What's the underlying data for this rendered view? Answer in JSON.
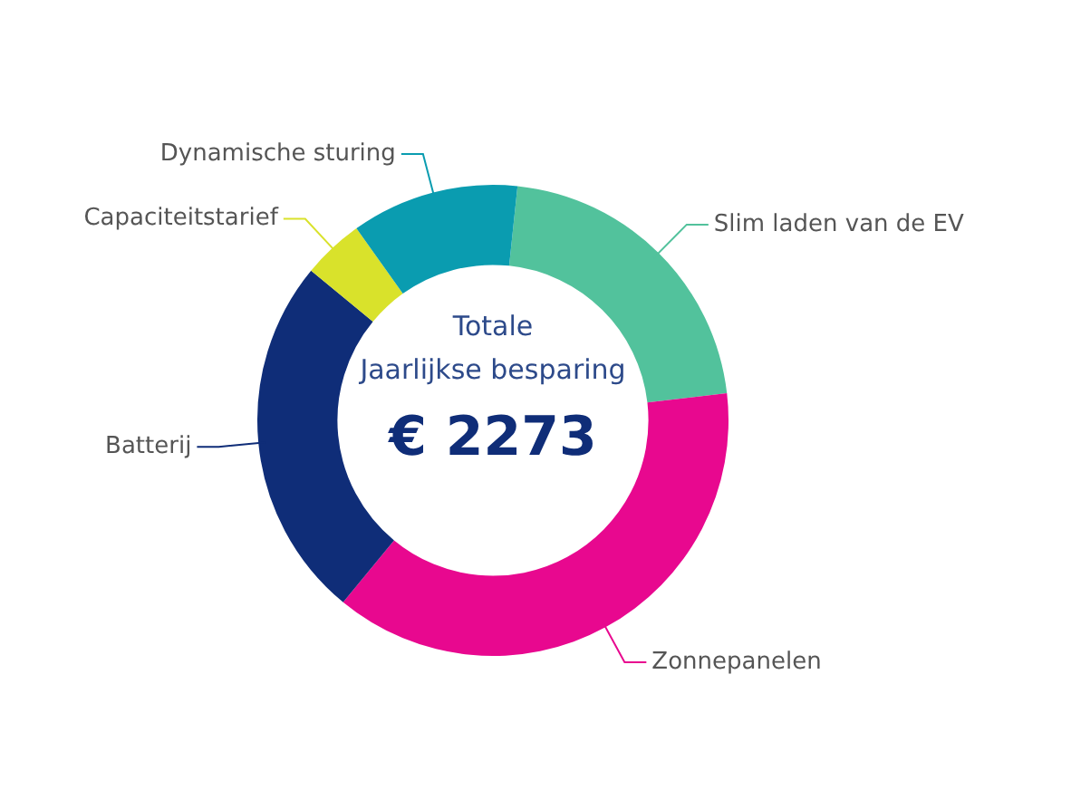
{
  "chart_data": {
    "type": "donut",
    "title": "Totale\nJaarlijkse besparing",
    "annotations": [
      "€ 2273"
    ],
    "categories": [
      "Slim laden van de EV",
      "Zonnepanelen",
      "Batterij",
      "Capaciteitstarief",
      "Dynamische sturing"
    ],
    "values": [
      21.5,
      37.8,
      25,
      4.2,
      11.5
    ],
    "colors": [
      "#52c29c",
      "#e8088f",
      "#0f2d78",
      "#d9e22b",
      "#0a9cb0"
    ],
    "legend": false
  }
}
